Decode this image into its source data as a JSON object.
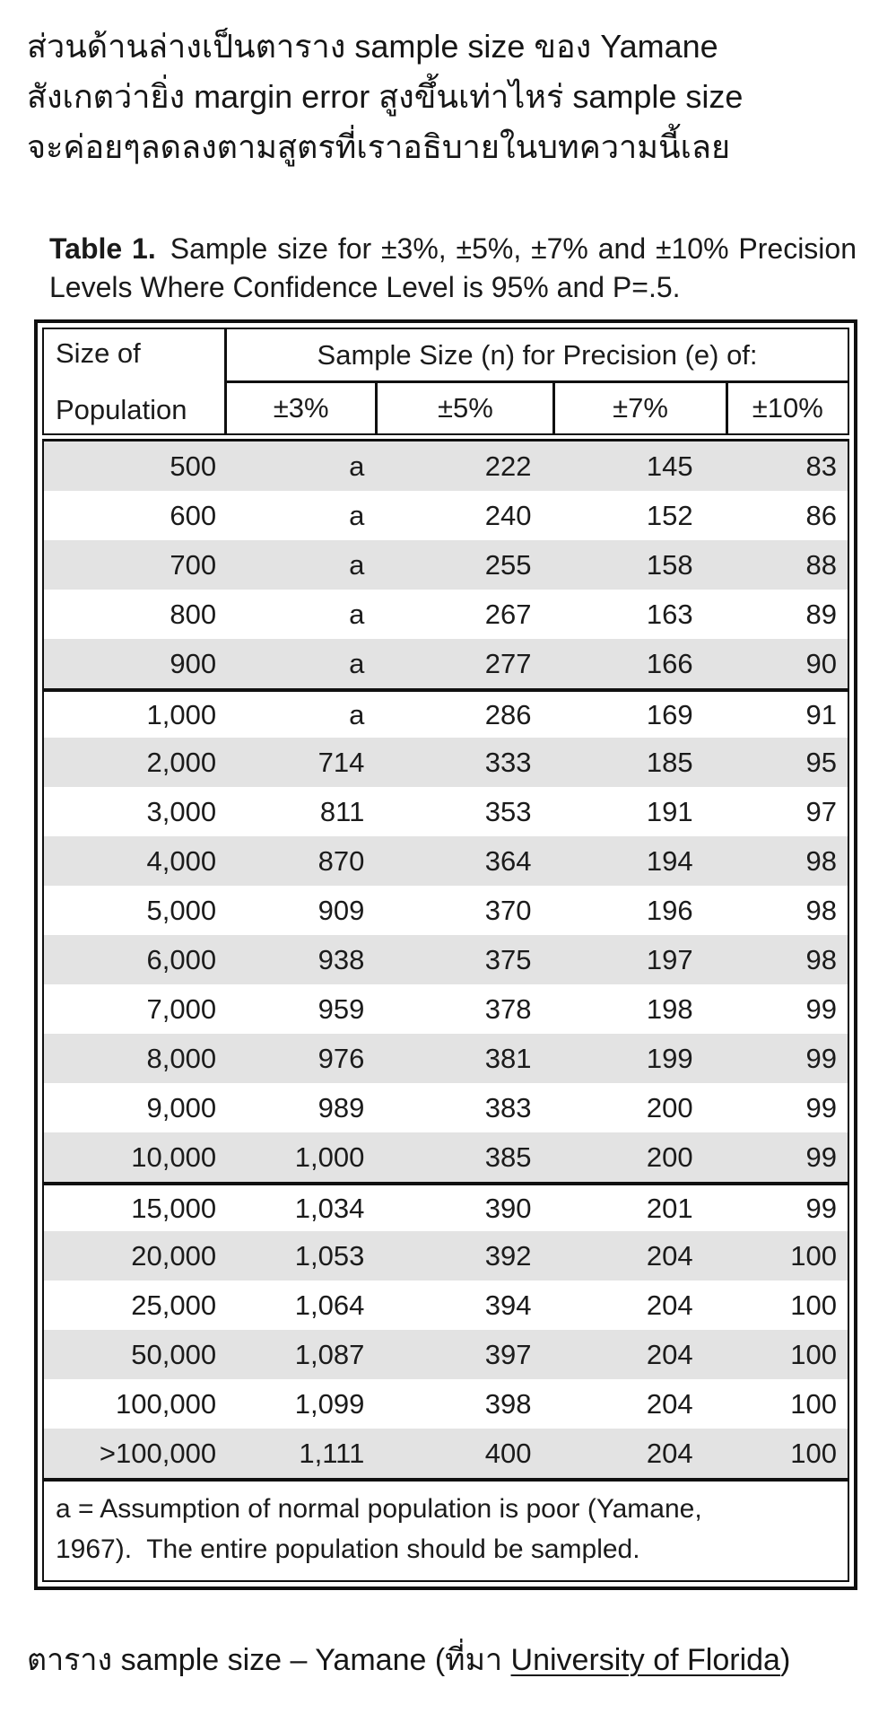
{
  "intro": {
    "lines": [
      "ส่วนด้านล่างเป็นตาราง sample size ของ Yamane",
      "สังเกตว่ายิ่ง margin error สูงขึ้นเท่าไหร่ sample size",
      "จะค่อยๆลดลงตามสูตรที่เราอธิบายในบทความนี้เลย"
    ]
  },
  "table_title": {
    "label": "Table 1.",
    "text": "Sample size for ±3%, ±5%, ±7% and ±10% Precision Levels Where Confidence Level is 95% and P=.5."
  },
  "table": {
    "row_header_line1": "Size of",
    "row_header_line2": "Population",
    "span_header": "Sample Size (n) for Precision (e) of:",
    "precision_headers": [
      "±3%",
      "±5%",
      "±7%",
      "±10%"
    ],
    "rows": [
      {
        "population": "500",
        "p3": "a",
        "p5": "222",
        "p7": "145",
        "p10": "83",
        "block_start": false
      },
      {
        "population": "600",
        "p3": "a",
        "p5": "240",
        "p7": "152",
        "p10": "86",
        "block_start": false
      },
      {
        "population": "700",
        "p3": "a",
        "p5": "255",
        "p7": "158",
        "p10": "88",
        "block_start": false
      },
      {
        "population": "800",
        "p3": "a",
        "p5": "267",
        "p7": "163",
        "p10": "89",
        "block_start": false
      },
      {
        "population": "900",
        "p3": "a",
        "p5": "277",
        "p7": "166",
        "p10": "90",
        "block_start": false
      },
      {
        "population": "1,000",
        "p3": "a",
        "p5": "286",
        "p7": "169",
        "p10": "91",
        "block_start": true
      },
      {
        "population": "2,000",
        "p3": "714",
        "p5": "333",
        "p7": "185",
        "p10": "95",
        "block_start": false
      },
      {
        "population": "3,000",
        "p3": "811",
        "p5": "353",
        "p7": "191",
        "p10": "97",
        "block_start": false
      },
      {
        "population": "4,000",
        "p3": "870",
        "p5": "364",
        "p7": "194",
        "p10": "98",
        "block_start": false
      },
      {
        "population": "5,000",
        "p3": "909",
        "p5": "370",
        "p7": "196",
        "p10": "98",
        "block_start": false
      },
      {
        "population": "6,000",
        "p3": "938",
        "p5": "375",
        "p7": "197",
        "p10": "98",
        "block_start": false
      },
      {
        "population": "7,000",
        "p3": "959",
        "p5": "378",
        "p7": "198",
        "p10": "99",
        "block_start": false
      },
      {
        "population": "8,000",
        "p3": "976",
        "p5": "381",
        "p7": "199",
        "p10": "99",
        "block_start": false
      },
      {
        "population": "9,000",
        "p3": "989",
        "p5": "383",
        "p7": "200",
        "p10": "99",
        "block_start": false
      },
      {
        "population": "10,000",
        "p3": "1,000",
        "p5": "385",
        "p7": "200",
        "p10": "99",
        "block_start": false
      },
      {
        "population": "15,000",
        "p3": "1,034",
        "p5": "390",
        "p7": "201",
        "p10": "99",
        "block_start": true
      },
      {
        "population": "20,000",
        "p3": "1,053",
        "p5": "392",
        "p7": "204",
        "p10": "100",
        "block_start": false
      },
      {
        "population": "25,000",
        "p3": "1,064",
        "p5": "394",
        "p7": "204",
        "p10": "100",
        "block_start": false
      },
      {
        "population": "50,000",
        "p3": "1,087",
        "p5": "397",
        "p7": "204",
        "p10": "100",
        "block_start": false
      },
      {
        "population": "100,000",
        "p3": "1,099",
        "p5": "398",
        "p7": "204",
        "p10": "100",
        "block_start": false
      },
      {
        "population": ">100,000",
        "p3": "1,111",
        "p5": "400",
        "p7": "204",
        "p10": "100",
        "block_start": false
      }
    ],
    "footnote_line1": "a = Assumption of normal population is poor (Yamane,",
    "footnote_line2": "1967).  The entire population should be sampled."
  },
  "caption": {
    "prefix": "ตาราง sample size – Yamane (ที่มา ",
    "link_text": "University of Florida",
    "suffix": ")"
  },
  "colors": {
    "row_shade": "#e3e3e3",
    "border": "#101010",
    "text": "#1b1b1b"
  }
}
